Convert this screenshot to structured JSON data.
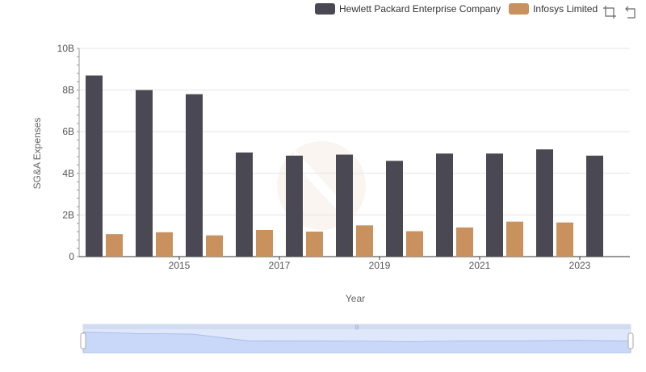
{
  "legend": {
    "items": [
      {
        "name": "Hewlett Packard Enterprise Company",
        "color": "#4a4953"
      },
      {
        "name": "Infosys Limited",
        "color": "#c8915e"
      }
    ]
  },
  "toolbox": {
    "icons": [
      "zoom-select-icon",
      "restore-icon"
    ]
  },
  "chart_data": {
    "type": "bar",
    "x": [
      2014,
      2015,
      2016,
      2017,
      2018,
      2019,
      2020,
      2021,
      2022,
      2023,
      2024
    ],
    "x_tick_labels": [
      "2015",
      "2017",
      "2019",
      "2021",
      "2023"
    ],
    "xlabel": "Year",
    "ylabel": "SG&A Expenses",
    "ylim": [
      0,
      10000000000
    ],
    "y_tick_labels": [
      "0",
      "2B",
      "4B",
      "6B",
      "8B",
      "10B"
    ],
    "grid": true,
    "legend_position": "top-right",
    "series": [
      {
        "name": "Hewlett Packard Enterprise Company",
        "color": "#4a4953",
        "values": [
          8700000000,
          8000000000,
          7800000000,
          5000000000,
          4850000000,
          4900000000,
          4600000000,
          4950000000,
          4950000000,
          5150000000,
          4850000000
        ]
      },
      {
        "name": "Infosys Limited",
        "color": "#c8915e",
        "values": [
          1080000000,
          1170000000,
          1020000000,
          1280000000,
          1200000000,
          1500000000,
          1220000000,
          1400000000,
          1680000000,
          1640000000,
          null
        ]
      }
    ]
  }
}
